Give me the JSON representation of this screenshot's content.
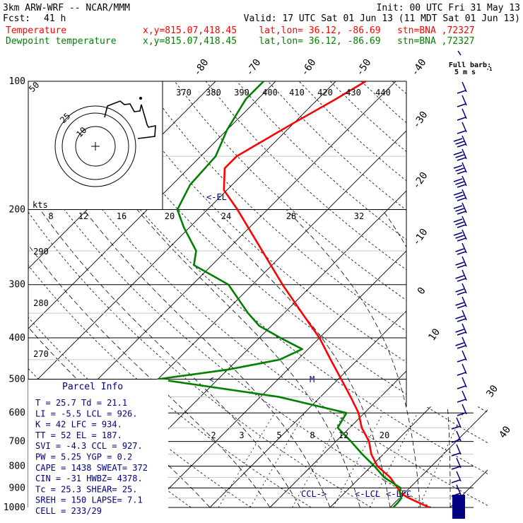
{
  "header": {
    "model": "3km ARW-WRF -- NCAR/MMM",
    "init": "Init: 00 UTC Fri 31 May 13",
    "fcst_label": "Fcst:",
    "fcst": "41 h",
    "valid": "Valid: 17 UTC Sat 01 Jun 13 (11 MDT Sat 01 Jun 13)",
    "temp_label": "Temperature",
    "dew_label": "Dewpoint temperature",
    "location": "x,y=815.07,418.45    lat,lon= 36.12, -86.69   stn=BNA ,72327"
  },
  "colors": {
    "temperature": "#ff0000",
    "dewpoint": "#008000",
    "accent": "#000080",
    "grid": "#000000"
  },
  "pressure_labels": [
    "100",
    "200",
    "300",
    "400",
    "500",
    "600",
    "700",
    "800",
    "900",
    "1000"
  ],
  "wind_unit": "kts",
  "hodograph_speeds": [
    "8",
    "12",
    "16",
    "20",
    "24",
    "28",
    "32"
  ],
  "theta_labels": [
    "370",
    "380",
    "390",
    "400",
    "410",
    "420",
    "430",
    "440"
  ],
  "theta_side_labels": [
    "290",
    "280",
    "270"
  ],
  "isotherm_labels": [
    "-80",
    "-70",
    "-60",
    "-50",
    "-40",
    "-30",
    "-20",
    "-10",
    "0",
    "10",
    "30",
    "40"
  ],
  "mixing_ratio_labels": [
    "2",
    "3",
    "5",
    "8",
    "12",
    "20"
  ],
  "hodo_ring_labels": [
    "50",
    "25",
    "10"
  ],
  "full_barb": {
    "line1": "Full barb:",
    "line2": "5 m s",
    "sup": "-1"
  },
  "markers": {
    "el": "<-EL",
    "ccl": "CCL->",
    "lcl": "<-LCL",
    "lfc": "<-LFC",
    "m": "M"
  },
  "parcel_info": {
    "title": "Parcel Info",
    "rows": [
      "T  =   25.7  Td =  21.1",
      "LI =   -5.5  LCL =  926.",
      "K  =     42  LFC =  934.",
      "TT =     52  EL  =  187.",
      "SVI =  -4.3  CCL =  927.",
      "PW =   5.25  YGP =   0.2",
      "CAPE =  1438  SWEAT=  372",
      "CIN =    -31  HWBZ= 4378.",
      "Tc =   25.3  SHEAR=  25.",
      "SREH =   150  LAPSE=  7.1",
      "CELL = 233/29"
    ]
  },
  "chart_data": {
    "type": "line",
    "y_axis": "pressure (hPa), log scale",
    "ylim": [
      1000,
      100
    ],
    "series": [
      {
        "name": "Temperature",
        "points": [
          [
            1000,
            26.5
          ],
          [
            975,
            24.0
          ],
          [
            950,
            21.5
          ],
          [
            925,
            19.3
          ],
          [
            900,
            18.0
          ],
          [
            850,
            15.0
          ],
          [
            800,
            11.0
          ],
          [
            750,
            8.0
          ],
          [
            700,
            5.5
          ],
          [
            650,
            2.0
          ],
          [
            600,
            -1.0
          ],
          [
            550,
            -5.0
          ],
          [
            500,
            -9.5
          ],
          [
            450,
            -14.5
          ],
          [
            400,
            -20.0
          ],
          [
            350,
            -27.0
          ],
          [
            300,
            -35.0
          ],
          [
            250,
            -44.0
          ],
          [
            200,
            -55.0
          ],
          [
            180,
            -60.5
          ],
          [
            160,
            -64.0
          ],
          [
            150,
            -64.0
          ],
          [
            140,
            -62.5
          ],
          [
            125,
            -60.0
          ],
          [
            110,
            -57.0
          ],
          [
            100,
            -55.0
          ]
        ]
      },
      {
        "name": "Dewpoint temperature",
        "points": [
          [
            1000,
            20.5
          ],
          [
            975,
            20.5
          ],
          [
            950,
            20.3
          ],
          [
            925,
            19.2
          ],
          [
            900,
            18.5
          ],
          [
            850,
            14.0
          ],
          [
            800,
            10.5
          ],
          [
            750,
            6.5
          ],
          [
            700,
            2.5
          ],
          [
            650,
            -2.0
          ],
          [
            600,
            -3.0
          ],
          [
            550,
            -17.0
          ],
          [
            500,
            -40.0
          ],
          [
            475,
            -30.0
          ],
          [
            450,
            -23.0
          ],
          [
            425,
            -21.0
          ],
          [
            400,
            -26.5
          ],
          [
            375,
            -32.0
          ],
          [
            350,
            -36.0
          ],
          [
            300,
            -44.0
          ],
          [
            270,
            -53.0
          ],
          [
            250,
            -55.0
          ],
          [
            220,
            -61.0
          ],
          [
            200,
            -65.0
          ],
          [
            175,
            -67.0
          ],
          [
            150,
            -67.5
          ],
          [
            130,
            -70.0
          ],
          [
            110,
            -72.0
          ],
          [
            100,
            -72.0
          ]
        ]
      }
    ]
  }
}
